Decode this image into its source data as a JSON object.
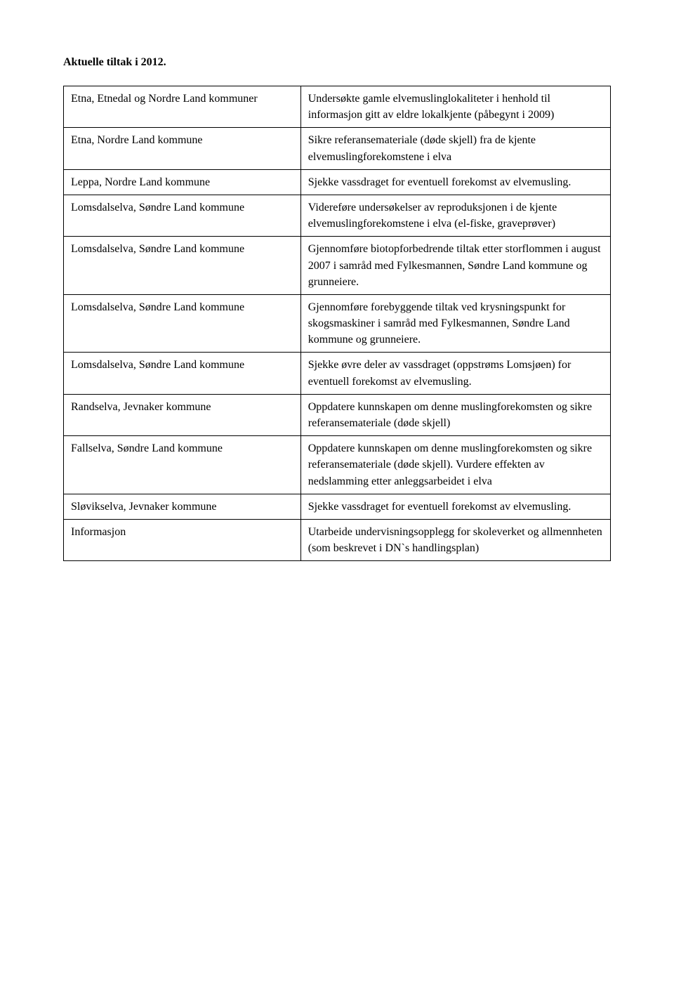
{
  "title": "Aktuelle tiltak i 2012.",
  "rows": [
    {
      "left": "Etna, Etnedal og Nordre Land kommuner",
      "right": "Undersøkte gamle elvemuslinglokaliteter i henhold til informasjon gitt av eldre lokalkjente (påbegynt i 2009)"
    },
    {
      "left": "Etna, Nordre Land kommune",
      "right": "Sikre referansemateriale (døde skjell) fra de kjente elvemuslingforekomstene i elva"
    },
    {
      "left": "Leppa, Nordre Land kommune",
      "right": "Sjekke vassdraget for eventuell forekomst av elvemusling."
    },
    {
      "left": "Lomsdalselva, Søndre Land kommune",
      "right": "Videreføre undersøkelser av reproduksjonen i de kjente elvemuslingforekomstene i elva (el-fiske, graveprøver)"
    },
    {
      "left": "Lomsdalselva, Søndre Land kommune",
      "right": "Gjennomføre biotopforbedrende tiltak etter storflommen i august 2007 i samråd med Fylkesmannen, Søndre Land kommune og grunneiere."
    },
    {
      "left": "Lomsdalselva, Søndre Land kommune",
      "right": "Gjennomføre forebyggende tiltak ved krysningspunkt for skogsmaskiner i samråd med Fylkesmannen, Søndre Land kommune og grunneiere."
    },
    {
      "left": "Lomsdalselva, Søndre Land kommune",
      "right": "Sjekke øvre deler av vassdraget (oppstrøms Lomsjøen) for eventuell forekomst av elvemusling."
    },
    {
      "left": "Randselva, Jevnaker kommune",
      "right": "Oppdatere kunnskapen om denne muslingforekomsten og sikre referansemateriale (døde skjell)"
    },
    {
      "left": "Fallselva, Søndre Land kommune",
      "right": "Oppdatere kunnskapen om denne muslingforekomsten og sikre referansemateriale (døde skjell). Vurdere effekten av nedslamming etter anleggsarbeidet i elva"
    },
    {
      "left": "Sløvikselva, Jevnaker kommune",
      "right": "Sjekke vassdraget for eventuell forekomst av elvemusling."
    },
    {
      "left": "Informasjon",
      "right": "Utarbeide undervisningsopplegg for skoleverket og allmennheten (som beskrevet i DN`s handlingsplan)"
    }
  ]
}
